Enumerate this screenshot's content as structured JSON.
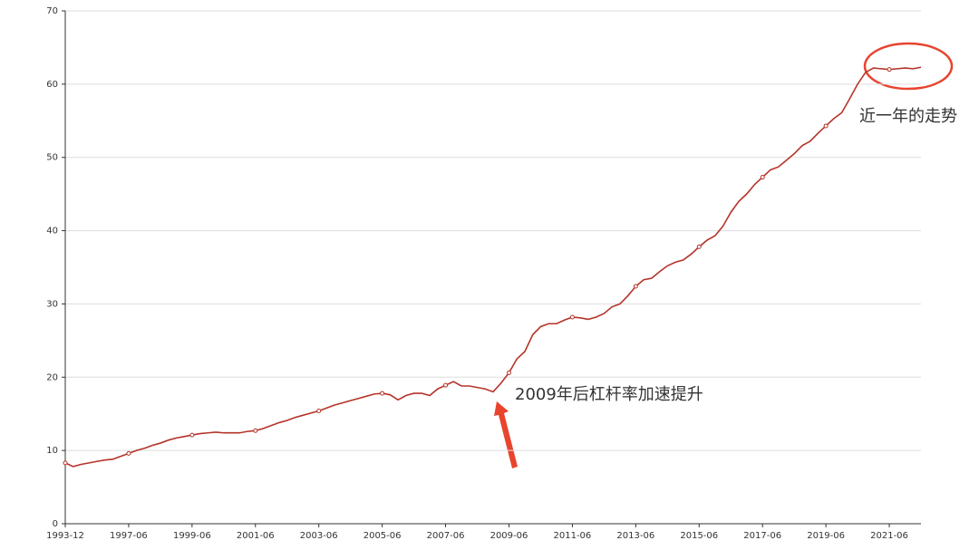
{
  "chart_data": {
    "type": "line",
    "categories": [
      "1993-12",
      null,
      null,
      null,
      null,
      null,
      null,
      null,
      "1997-06",
      null,
      null,
      null,
      null,
      null,
      null,
      null,
      "1999-06",
      null,
      null,
      null,
      null,
      null,
      null,
      null,
      "2001-06",
      null,
      null,
      null,
      null,
      null,
      null,
      null,
      "2003-06",
      null,
      null,
      null,
      null,
      null,
      null,
      null,
      "2005-06",
      null,
      null,
      null,
      null,
      null,
      null,
      null,
      "2007-06",
      null,
      null,
      null,
      null,
      null,
      null,
      null,
      "2009-06",
      null,
      null,
      null,
      null,
      null,
      null,
      null,
      "2011-06",
      null,
      null,
      null,
      null,
      null,
      null,
      null,
      "2013-06",
      null,
      null,
      null,
      null,
      null,
      null,
      null,
      "2015-06",
      null,
      null,
      null,
      null,
      null,
      null,
      null,
      "2017-06",
      null,
      null,
      null,
      null,
      null,
      null,
      null,
      "2019-06",
      null,
      null,
      null,
      null,
      null,
      null,
      null,
      "2021-06",
      null,
      null,
      null,
      null
    ],
    "values": [
      8.3,
      7.8,
      8.1,
      8.3,
      8.5,
      8.7,
      8.8,
      9.2,
      9.6,
      10.0,
      10.3,
      10.7,
      11.0,
      11.4,
      11.7,
      11.9,
      12.1,
      12.3,
      12.4,
      12.5,
      12.4,
      12.4,
      12.4,
      12.6,
      12.7,
      13.0,
      13.4,
      13.8,
      14.1,
      14.5,
      14.8,
      15.1,
      15.4,
      15.8,
      16.2,
      16.5,
      16.8,
      17.1,
      17.4,
      17.7,
      17.8,
      17.6,
      16.9,
      17.5,
      17.8,
      17.8,
      17.5,
      18.4,
      18.9,
      19.4,
      18.8,
      18.8,
      18.6,
      18.4,
      18.0,
      19.2,
      20.6,
      22.5,
      23.5,
      25.8,
      26.9,
      27.3,
      27.3,
      27.8,
      28.2,
      28.1,
      27.9,
      28.2,
      28.7,
      29.6,
      30.0,
      31.1,
      32.4,
      33.3,
      33.5,
      34.4,
      35.2,
      35.7,
      36.0,
      36.8,
      37.8,
      38.7,
      39.3,
      40.6,
      42.5,
      44.0,
      45.0,
      46.3,
      47.3,
      48.3,
      48.7,
      49.6,
      50.5,
      51.6,
      52.2,
      53.3,
      54.3,
      55.3,
      56.1,
      58.0,
      60.0,
      61.6,
      62.2,
      62.1,
      62.0,
      62.1,
      62.2,
      62.1,
      62.3
    ],
    "color": "#b5332a",
    "ylim": [
      0,
      70
    ],
    "yticks": [
      0,
      10,
      20,
      30,
      40,
      50,
      60,
      70
    ],
    "grid": true,
    "annotations": [
      "近一年的走势",
      "2009年后杠杆率加速提升"
    ],
    "annotation_color": "#e8442e"
  }
}
